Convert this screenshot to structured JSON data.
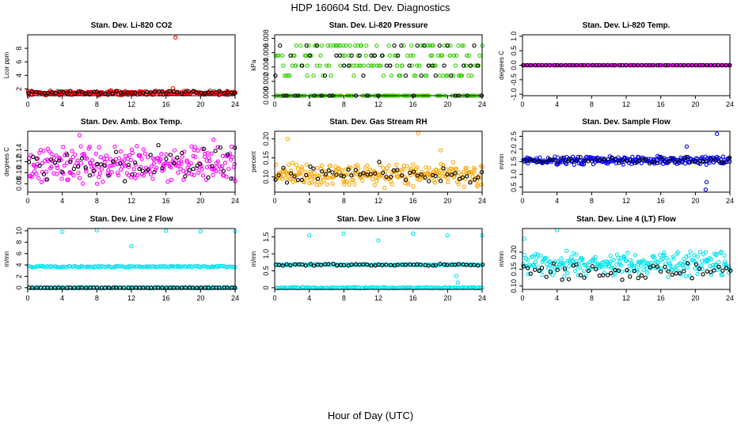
{
  "figure": {
    "title": "HDP  160604  Std. Dev. Diagnostics",
    "xlabel": "Hour of Day (UTC)"
  },
  "chart_data": [
    {
      "type": "scatter",
      "title": "Stan. Dev. Li-820 CO2",
      "ylabel": "Lcor ppm",
      "xlim": [
        0,
        24
      ],
      "ylim": [
        1.0,
        10.0
      ],
      "yticks": [
        2,
        4,
        6,
        8
      ],
      "xticks": [
        0,
        4,
        8,
        12,
        16,
        20,
        24
      ],
      "fill_color": "#ff0000",
      "series": [
        {
          "name": "fill",
          "color": "#ff0000",
          "kind": "band",
          "base": 1.4,
          "spread": 0.25,
          "outliers": [
            [
              17.1,
              9.6
            ],
            [
              16.8,
              2.1
            ]
          ]
        },
        {
          "name": "black",
          "color": "#000000",
          "kind": "sparse",
          "base": 1.5,
          "spread": 0.2
        }
      ]
    },
    {
      "type": "scatter",
      "title": "Stan. Dev. Li-820 Pressure",
      "ylabel": "kPa",
      "xlim": [
        0,
        24
      ],
      "ylim": [
        0,
        0.0085
      ],
      "yticks": [
        0.0,
        0.002,
        0.004,
        0.006,
        0.008
      ],
      "ytick_labels": [
        "0.000",
        "0.002",
        "0.004",
        "0.006",
        "0.008"
      ],
      "xticks": [
        0,
        4,
        8,
        12,
        16,
        20,
        24
      ],
      "fill_color": "#33cc00",
      "series": [
        {
          "name": "fill",
          "color": "#33cc00",
          "kind": "levels",
          "levels": [
            0.0,
            0.0028,
            0.0042,
            0.0056,
            0.007
          ]
        },
        {
          "name": "black",
          "color": "#000000",
          "kind": "levels-sparse",
          "levels": [
            0.0,
            0.0028,
            0.0042,
            0.0056,
            0.007
          ]
        }
      ]
    },
    {
      "type": "scatter",
      "title": "Stan. Dev. Li-820 Temp.",
      "ylabel": "degrees C",
      "xlim": [
        0,
        24
      ],
      "ylim": [
        -1.05,
        1.05
      ],
      "yticks": [
        -1.0,
        -0.5,
        0.0,
        0.5,
        1.0
      ],
      "ytick_labels": [
        "-1.0",
        "-0.5",
        "0.0",
        "0.5",
        "1.0"
      ],
      "xticks": [
        0,
        4,
        8,
        12,
        16,
        20,
        24
      ],
      "fill_color": "#ff00ff",
      "series": [
        {
          "name": "fill",
          "color": "#ff00ff",
          "kind": "line",
          "base": 0.0
        },
        {
          "name": "black",
          "color": "#000000",
          "kind": "line-sparse",
          "base": 0.0
        }
      ]
    },
    {
      "type": "scatter",
      "title": "Stan. Dev. Amb. Box Temp.",
      "ylabel": "degrees C",
      "xlim": [
        0,
        24
      ],
      "ylim": [
        0.065,
        0.175
      ],
      "yticks": [
        0.08,
        0.1,
        0.12,
        0.14
      ],
      "ytick_labels": [
        "0.08",
        "0.10",
        "0.12",
        "0.14"
      ],
      "xticks": [
        0,
        4,
        8,
        12,
        16,
        20,
        24
      ],
      "fill_color": "#ff00ff",
      "series": [
        {
          "name": "fill",
          "color": "#ff00ff",
          "kind": "band",
          "base": 0.115,
          "spread": 0.025,
          "outliers": [
            [
              6.0,
              0.168
            ],
            [
              21.5,
              0.16
            ]
          ]
        },
        {
          "name": "black",
          "color": "#000000",
          "kind": "sparse",
          "base": 0.115,
          "spread": 0.025
        }
      ]
    },
    {
      "type": "scatter",
      "title": "Stan. Dev. Gas Stream RH",
      "ylabel": "percent",
      "xlim": [
        0,
        24
      ],
      "ylim": [
        0.06,
        0.22
      ],
      "yticks": [
        0.1,
        0.15,
        0.2
      ],
      "ytick_labels": [
        "0.10",
        "0.15",
        "0.20"
      ],
      "xticks": [
        0,
        4,
        8,
        12,
        16,
        20,
        24
      ],
      "fill_color": "#ffa500",
      "series": [
        {
          "name": "fill",
          "color": "#ffa500",
          "kind": "band",
          "base": 0.105,
          "spread": 0.022,
          "outliers": [
            [
              16.6,
              0.215
            ],
            [
              1.5,
              0.2
            ],
            [
              19.2,
              0.17
            ]
          ]
        },
        {
          "name": "black",
          "color": "#000000",
          "kind": "sparse",
          "base": 0.11,
          "spread": 0.02
        }
      ]
    },
    {
      "type": "scatter",
      "title": "Stan. Dev. Sample Flow",
      "ylabel": "m/mn",
      "xlim": [
        0,
        24
      ],
      "ylim": [
        0.3,
        2.7
      ],
      "yticks": [
        0.5,
        1.0,
        1.5,
        2.0,
        2.5
      ],
      "ytick_labels": [
        "0.5",
        "1.0",
        "1.5",
        "2.0",
        "2.5"
      ],
      "xticks": [
        0,
        4,
        8,
        12,
        16,
        20,
        24
      ],
      "fill_color": "#0000ff",
      "series": [
        {
          "name": "fill",
          "color": "#0000ff",
          "kind": "band",
          "base": 1.55,
          "spread": 0.12,
          "outliers": [
            [
              21.2,
              0.4
            ],
            [
              21.3,
              0.7
            ],
            [
              22.5,
              2.6
            ],
            [
              19.0,
              2.1
            ]
          ]
        },
        {
          "name": "black",
          "color": "#000000",
          "kind": "sparse",
          "base": 1.55,
          "spread": 0.1
        }
      ]
    },
    {
      "type": "scatter",
      "title": "Stan. Dev. Line 2 Flow",
      "ylabel": "m/mn",
      "xlim": [
        0,
        24
      ],
      "ylim": [
        -0.3,
        10.4
      ],
      "yticks": [
        0,
        2,
        4,
        6,
        8,
        10
      ],
      "ytick_labels": [
        "0",
        "2",
        "4",
        "6",
        "8",
        "10"
      ],
      "xticks": [
        0,
        4,
        8,
        12,
        16,
        20,
        24
      ],
      "fill_color": "#00e5ee",
      "series": [
        {
          "name": "fill",
          "color": "#00e5ee",
          "kind": "twolines",
          "levels": [
            3.7,
            0.0
          ],
          "spread": 0.12,
          "outliers": [
            [
              4.0,
              9.8
            ],
            [
              8.0,
              10.1
            ],
            [
              12.0,
              7.3
            ],
            [
              16.0,
              10.0
            ],
            [
              20.0,
              9.9
            ],
            [
              24.0,
              9.9
            ]
          ]
        },
        {
          "name": "black",
          "color": "#000000",
          "kind": "line-sparse",
          "base": 0.0
        }
      ]
    },
    {
      "type": "scatter",
      "title": "Stan. Dev. Line 3 Flow",
      "ylabel": "m/mn",
      "xlim": [
        0,
        24
      ],
      "ylim": [
        -0.05,
        1.75
      ],
      "yticks": [
        0.0,
        0.5,
        1.0,
        1.5
      ],
      "ytick_labels": [
        "0",
        "0.5",
        "1.0",
        "1.5"
      ],
      "xticks": [
        0,
        4,
        8,
        12,
        16,
        20,
        24
      ],
      "fill_color": "#00e5ee",
      "series": [
        {
          "name": "fill",
          "color": "#00e5ee",
          "kind": "twolines",
          "levels": [
            0.68,
            0.0
          ],
          "spread": 0.015,
          "outliers": [
            [
              4.0,
              1.55
            ],
            [
              8.0,
              1.6
            ],
            [
              12.0,
              1.4
            ],
            [
              16.0,
              1.6
            ],
            [
              20.0,
              1.55
            ],
            [
              24.0,
              1.55
            ],
            [
              21.2,
              0.15
            ],
            [
              21.0,
              0.35
            ]
          ]
        },
        {
          "name": "black",
          "color": "#000000",
          "kind": "sparse",
          "base": 0.68,
          "spread": 0.02
        }
      ]
    },
    {
      "type": "scatter",
      "title": "Stan. Dev. Line 4 (LT) Flow",
      "ylabel": "m/mn",
      "xlim": [
        0,
        24
      ],
      "ylim": [
        0.09,
        0.27
      ],
      "yticks": [
        0.1,
        0.15,
        0.2
      ],
      "ytick_labels": [
        "0.10",
        "0.15",
        "0.20"
      ],
      "xticks": [
        0,
        4,
        8,
        12,
        16,
        20,
        24
      ],
      "fill_color": "#00e5ee",
      "series": [
        {
          "name": "fill",
          "color": "#00e5ee",
          "kind": "band",
          "base": 0.165,
          "spread": 0.028,
          "outliers": [
            [
              4.0,
              0.265
            ],
            [
              0.2,
              0.24
            ]
          ]
        },
        {
          "name": "black",
          "color": "#000000",
          "kind": "sparse",
          "base": 0.145,
          "spread": 0.02
        }
      ]
    }
  ]
}
